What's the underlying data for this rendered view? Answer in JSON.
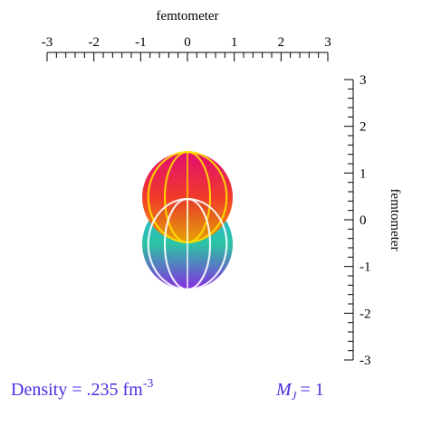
{
  "top_axis": {
    "label": "femtometer",
    "lim": [
      -3,
      3
    ],
    "ticks": [
      -3,
      -2,
      -1,
      0,
      1,
      2,
      3
    ]
  },
  "right_axis": {
    "label": "femtometer",
    "lim": [
      -3,
      3
    ],
    "ticks": [
      -3,
      -2,
      -1,
      0,
      1,
      2,
      3
    ]
  },
  "caption": {
    "density": "Density = .235 fm",
    "density_exponent": "-3",
    "mj_symbol": "M",
    "mj_subscript": "J",
    "mj_value": "= 1"
  }
}
